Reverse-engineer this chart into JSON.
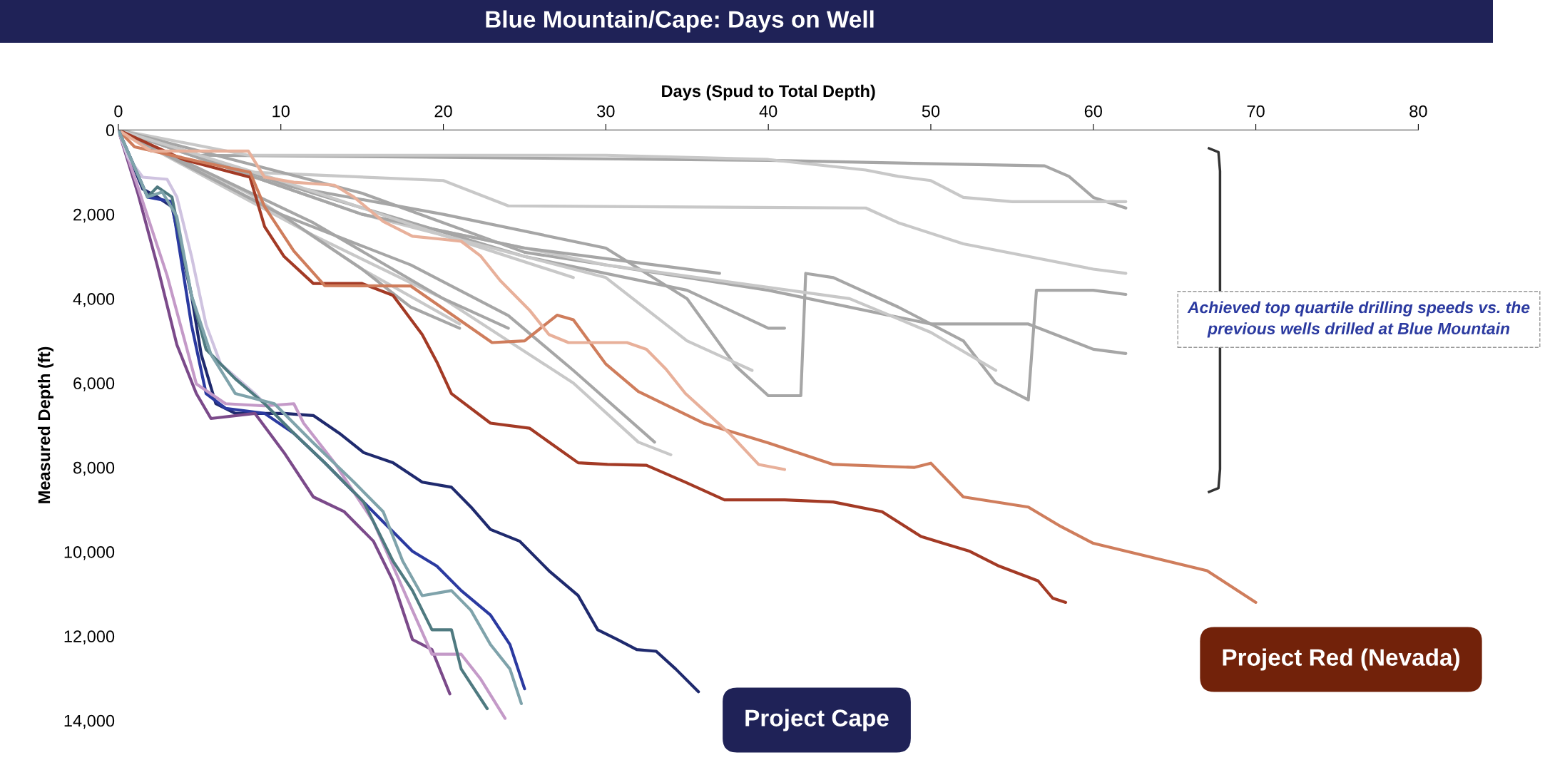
{
  "chart_data": {
    "type": "line",
    "title": "Blue Mountain/Cape: Days on Well",
    "xlabel": "Days (Spud to Total Depth)",
    "ylabel": "Measured Depth (ft)",
    "xlim": [
      0,
      80
    ],
    "xticks": [
      0,
      10,
      20,
      30,
      40,
      50,
      60,
      70,
      80
    ],
    "ylim": [
      14000,
      0
    ],
    "yticks": [
      0,
      {
        "value": 2000,
        "label": "2,000"
      },
      {
        "value": 4000,
        "label": "4,000"
      },
      {
        "value": 6000,
        "label": "6,000"
      },
      {
        "value": 8000,
        "label": "8,000"
      },
      {
        "value": 10000,
        "label": "10,000"
      },
      {
        "value": 12000,
        "label": "12,000"
      },
      {
        "value": 14000,
        "label": "14,000"
      }
    ],
    "grid": false,
    "legend": false,
    "marker": "none",
    "line_style": "solid",
    "annotations": [
      "Achieved top quartile drilling speeds vs. the previous wells drilled at Blue Mountain",
      "Project Cape",
      "Project Red (Nevada)"
    ],
    "series": [
      {
        "color": "#a6a6a6",
        "x": [
          0,
          5,
          20,
          40,
          50,
          57,
          58.5,
          60,
          62
        ],
        "values": [
          0,
          600,
          650,
          720,
          800,
          850,
          1100,
          1600,
          1850
        ]
      },
      {
        "color": "#c8c8c8",
        "x": [
          0,
          8,
          30,
          40,
          46,
          48,
          50,
          52,
          55,
          62
        ],
        "values": [
          0,
          600,
          600,
          700,
          950,
          1100,
          1200,
          1600,
          1700,
          1700
        ]
      },
      {
        "color": "#c8c8c8",
        "x": [
          0,
          8,
          20,
          24,
          46,
          48,
          52,
          60,
          62
        ],
        "values": [
          0,
          1000,
          1200,
          1800,
          1850,
          2200,
          2700,
          3300,
          3400
        ]
      },
      {
        "color": "#a6a6a6",
        "x": [
          0,
          10,
          20,
          30,
          35,
          38,
          40,
          42,
          42.3,
          44,
          48,
          52,
          54,
          56,
          56.5,
          60,
          62
        ],
        "values": [
          0,
          1300,
          2000,
          2800,
          4000,
          5600,
          6300,
          6300,
          3400,
          3500,
          4200,
          5000,
          6000,
          6400,
          3800,
          3800,
          3900
        ]
      },
      {
        "color": "#a6a6a6",
        "x": [
          0,
          15,
          25,
          40,
          50,
          56,
          60,
          62
        ],
        "values": [
          0,
          1500,
          2900,
          3800,
          4600,
          4600,
          5200,
          5300
        ]
      },
      {
        "color": "#c8c8c8",
        "x": [
          0,
          15,
          30,
          45,
          50,
          54
        ],
        "values": [
          0,
          2000,
          3200,
          4000,
          4800,
          5700
        ]
      },
      {
        "color": "#a6a6a6",
        "x": [
          0,
          12,
          25,
          35,
          40,
          41
        ],
        "values": [
          0,
          1500,
          3000,
          3800,
          4700,
          4700
        ]
      },
      {
        "color": "#c8c8c8",
        "x": [
          0,
          15,
          30,
          35,
          39
        ],
        "values": [
          0,
          2000,
          3500,
          5000,
          5700
        ]
      },
      {
        "color": "#a6a6a6",
        "x": [
          0,
          10,
          18,
          24,
          28,
          33
        ],
        "values": [
          0,
          2000,
          3200,
          4400,
          5700,
          7400
        ]
      },
      {
        "color": "#c8c8c8",
        "x": [
          0,
          12,
          20,
          28,
          32,
          34
        ],
        "values": [
          0,
          2500,
          4000,
          6000,
          7400,
          7700
        ]
      },
      {
        "color": "#c8c8c8",
        "x": [
          0,
          8,
          15,
          21
        ],
        "values": [
          0,
          1500,
          3300,
          4600
        ]
      },
      {
        "color": "#a6a6a6",
        "x": [
          0,
          15,
          25,
          37
        ],
        "values": [
          0,
          2000,
          2800,
          3400
        ]
      },
      {
        "color": "#a6a6a6",
        "x": [
          0,
          10,
          15,
          18,
          21
        ],
        "values": [
          0,
          2000,
          3300,
          4200,
          4700
        ]
      },
      {
        "color": "#a6a6a6",
        "x": [
          0,
          12,
          20,
          24
        ],
        "values": [
          0,
          2200,
          4000,
          4700
        ]
      },
      {
        "color": "#c8c8c8",
        "x": [
          0,
          10,
          20,
          28
        ],
        "values": [
          0,
          1200,
          2500,
          3500
        ]
      },
      {
        "color": "#a33a25",
        "x": [
          0,
          4,
          8.1,
          9,
          10.2,
          12,
          15,
          16.9,
          18.7,
          19.6,
          20.5,
          22.9,
          25.3,
          28.3,
          30.1,
          32.5,
          34.9,
          37.3,
          41,
          44,
          47,
          49.4,
          52.4,
          54.2,
          56.6,
          57.5,
          58.3
        ],
        "values": [
          0,
          700,
          1120,
          2290,
          3000,
          3640,
          3640,
          3920,
          4850,
          5500,
          6250,
          6950,
          7070,
          7890,
          7930,
          7950,
          8350,
          8770,
          8770,
          8820,
          9050,
          9640,
          9990,
          10340,
          10690,
          11100,
          11200
        ]
      },
      {
        "color": "#cf7d5c",
        "x": [
          0,
          1,
          5,
          8.1,
          9,
          10.8,
          12.7,
          18,
          23,
          25,
          27,
          28,
          30,
          32,
          36,
          40,
          44,
          49,
          50,
          52,
          56,
          58,
          60,
          64,
          67,
          70
        ],
        "values": [
          0,
          400,
          750,
          1000,
          1820,
          2870,
          3690,
          3700,
          5040,
          5000,
          4390,
          4500,
          5550,
          6200,
          6950,
          7420,
          7930,
          8000,
          7900,
          8700,
          8940,
          9400,
          9800,
          10170,
          10450,
          11200
        ]
      },
      {
        "color": "#e8b09a",
        "x": [
          0,
          2,
          8,
          9,
          10.8,
          13.3,
          14.5,
          16.3,
          18.1,
          19.9,
          21.1,
          22.3,
          23.5,
          25.3,
          26.5,
          27.7,
          31.3,
          32.5,
          33.7,
          34.9,
          36.1,
          37.6,
          39.4,
          41
        ],
        "values": [
          0,
          500,
          500,
          1120,
          1240,
          1310,
          1590,
          2170,
          2520,
          2590,
          2640,
          2990,
          3570,
          4270,
          4850,
          5040,
          5040,
          5200,
          5670,
          6250,
          6670,
          7190,
          7930,
          8050
        ]
      },
      {
        "color": "#1f2a6e",
        "x": [
          0,
          1.5,
          2.4,
          3.3,
          4.5,
          5.1,
          6,
          7.2,
          10.2,
          12,
          13.6,
          15.1,
          16.9,
          18.7,
          20.5,
          21.7,
          22.9,
          24.7,
          26.5,
          28.3,
          29.5,
          30.7,
          31.9,
          33.1,
          34.3,
          35.7
        ],
        "values": [
          0,
          1400,
          1590,
          1820,
          3920,
          5320,
          6490,
          6720,
          6720,
          6770,
          7190,
          7650,
          7890,
          8350,
          8470,
          8940,
          9470,
          9750,
          10450,
          11040,
          11850,
          12080,
          12320,
          12360,
          12780,
          13320
        ]
      },
      {
        "color": "#2b3aa0",
        "x": [
          0,
          1.8,
          3.3,
          4.5,
          5.4,
          6.6,
          9,
          10.8,
          12.7,
          14.5,
          16.3,
          18.1,
          19.6,
          21.1,
          22.9,
          24.1,
          25
        ],
        "values": [
          0,
          1590,
          1700,
          4620,
          6250,
          6600,
          6720,
          7190,
          7890,
          8590,
          9290,
          9990,
          10340,
          10920,
          11500,
          12200,
          13250
        ]
      },
      {
        "color": "#7b4a8a",
        "x": [
          0,
          1.2,
          2.4,
          3.6,
          4.8,
          5.7,
          8.4,
          10.2,
          12,
          13.9,
          15.7,
          16.9,
          18.1,
          19.3,
          20.4
        ],
        "values": [
          0,
          1500,
          3220,
          5090,
          6250,
          6840,
          6720,
          7650,
          8700,
          9050,
          9750,
          10690,
          12080,
          12320,
          13370
        ]
      },
      {
        "color": "#c49ac8",
        "x": [
          0,
          1.2,
          3,
          4.8,
          6.6,
          9,
          10.8,
          11.4,
          13.3,
          14.5,
          15.7,
          16.9,
          18.1,
          19.3,
          21.1,
          22.3,
          23.8
        ],
        "values": [
          0,
          1350,
          3450,
          6020,
          6490,
          6540,
          6490,
          6950,
          7890,
          8590,
          9290,
          10340,
          11390,
          12430,
          12430,
          13020,
          13950
        ]
      },
      {
        "color": "#cfc3e0",
        "x": [
          0,
          0.6,
          1.5,
          3,
          3.6,
          4.5,
          5.4,
          6.3,
          8.4,
          9.6
        ],
        "values": [
          0,
          650,
          1120,
          1170,
          1590,
          2990,
          4620,
          5550,
          6250,
          6720
        ]
      },
      {
        "color": "#4f7a80",
        "x": [
          0,
          1.8,
          2.4,
          3.3,
          4.5,
          5.4,
          7.2,
          9,
          10.8,
          12.7,
          15.1,
          16.9,
          18.1,
          19.3,
          20.5,
          21.1,
          22.7
        ],
        "values": [
          0,
          1590,
          1350,
          1590,
          3920,
          5200,
          5900,
          6490,
          7190,
          7890,
          8820,
          10220,
          10920,
          11850,
          11850,
          12780,
          13720
        ]
      },
      {
        "color": "#7fa3ab",
        "x": [
          0,
          1.8,
          2.7,
          3.6,
          4.5,
          5.7,
          7.2,
          9.6,
          12,
          14.5,
          16.3,
          17.5,
          18.7,
          20.5,
          21.7,
          22.9,
          24.1,
          24.8
        ],
        "values": [
          0,
          1590,
          1470,
          2050,
          3920,
          5320,
          6250,
          6490,
          7420,
          8350,
          9050,
          10220,
          11040,
          10920,
          11390,
          12200,
          12780,
          13600
        ]
      }
    ]
  }
}
